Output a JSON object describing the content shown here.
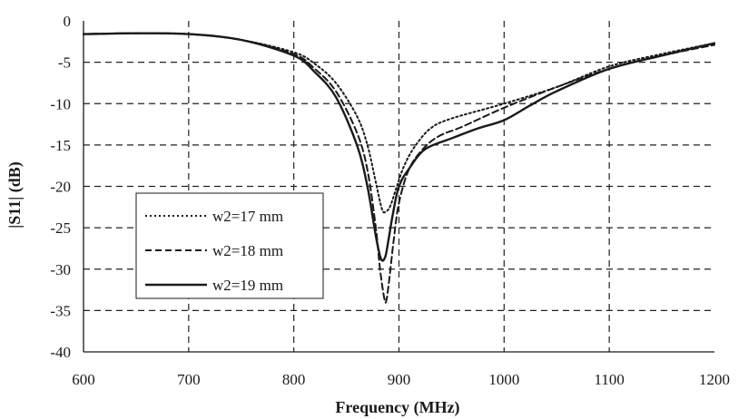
{
  "chart_data": {
    "type": "line",
    "title": "",
    "xlabel": "Frequency (MHz)",
    "ylabel": "|S11| (dB)",
    "xlim": [
      600,
      1200
    ],
    "ylim": [
      -40,
      0
    ],
    "x_ticks": [
      "600",
      "700",
      "800",
      "900",
      "1000",
      "1100",
      "1200"
    ],
    "y_ticks": [
      "0",
      "-5",
      "-10",
      "-15",
      "-20",
      "-25",
      "-30",
      "-35",
      "-40"
    ],
    "grid": true,
    "legend_placement": "lower-left",
    "series": [
      {
        "name": "w2=17 mm",
        "style": "dotted",
        "x": [
          600,
          650,
          700,
          750,
          800,
          820,
          840,
          860,
          870,
          878,
          884,
          888,
          892,
          898,
          905,
          915,
          930,
          950,
          1000,
          1050,
          1100,
          1150,
          1200
        ],
        "y": [
          -1.6,
          -1.5,
          -1.6,
          -2.3,
          -3.8,
          -5.2,
          -7.5,
          -11.5,
          -15.0,
          -19.5,
          -22.8,
          -23.0,
          -22.3,
          -20.0,
          -17.5,
          -15.2,
          -13.0,
          -11.8,
          -10.0,
          -8.0,
          -5.5,
          -4.0,
          -2.7
        ]
      },
      {
        "name": "w2=18 mm",
        "style": "dashed",
        "x": [
          600,
          650,
          700,
          750,
          800,
          820,
          840,
          860,
          870,
          878,
          882,
          886,
          888,
          891,
          895,
          900,
          910,
          925,
          940,
          960,
          1000,
          1050,
          1100,
          1150,
          1200
        ],
        "y": [
          -1.6,
          -1.5,
          -1.6,
          -2.3,
          -4.0,
          -5.8,
          -8.5,
          -13.5,
          -18.0,
          -25.0,
          -30.0,
          -33.5,
          -33.8,
          -31.0,
          -26.5,
          -22.0,
          -17.8,
          -15.2,
          -13.8,
          -12.8,
          -10.5,
          -8.0,
          -5.8,
          -4.2,
          -2.9
        ]
      },
      {
        "name": "w2=19 mm",
        "style": "solid",
        "x": [
          600,
          650,
          700,
          750,
          800,
          820,
          840,
          860,
          870,
          878,
          883,
          887,
          890,
          894,
          900,
          910,
          925,
          950,
          975,
          1000,
          1025,
          1050,
          1100,
          1150,
          1200
        ],
        "y": [
          -1.6,
          -1.5,
          -1.6,
          -2.3,
          -4.2,
          -6.2,
          -9.2,
          -15.0,
          -20.0,
          -26.0,
          -28.8,
          -28.5,
          -26.5,
          -23.5,
          -20.0,
          -17.8,
          -15.5,
          -14.2,
          -13.0,
          -12.0,
          -10.2,
          -8.5,
          -5.8,
          -4.2,
          -2.7
        ]
      }
    ]
  }
}
